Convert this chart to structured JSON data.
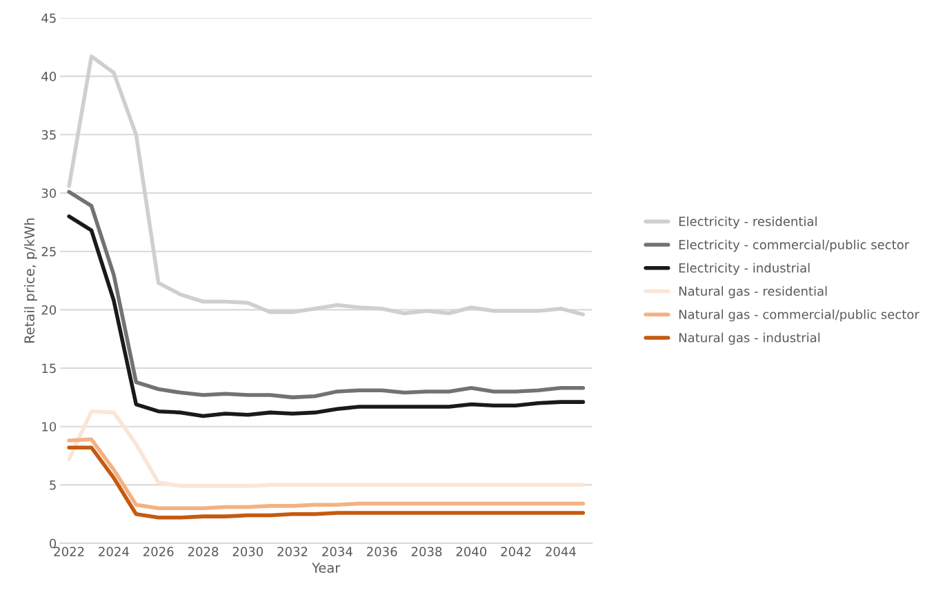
{
  "chart_data": {
    "type": "line",
    "xlabel": "Year",
    "ylabel": "Retail price, p/kWh",
    "x": [
      2022,
      2023,
      2024,
      2025,
      2026,
      2027,
      2028,
      2029,
      2030,
      2031,
      2032,
      2033,
      2034,
      2035,
      2036,
      2037,
      2038,
      2039,
      2040,
      2041,
      2042,
      2043,
      2044,
      2045
    ],
    "xlim": [
      2021.6,
      2045.4
    ],
    "xticks": [
      2022,
      2024,
      2026,
      2028,
      2030,
      2032,
      2034,
      2036,
      2038,
      2040,
      2042,
      2044
    ],
    "ylim": [
      0,
      45
    ],
    "yticks": [
      0,
      5,
      10,
      15,
      20,
      25,
      30,
      35,
      40,
      45
    ],
    "grid": "y",
    "legend": "right",
    "marker": "none",
    "line_style": "solid",
    "series": [
      {
        "name": "Electricity - residential",
        "color": "#d0cece",
        "values": [
          30.6,
          41.7,
          40.3,
          35.0,
          22.3,
          21.3,
          20.7,
          20.7,
          20.6,
          19.8,
          19.8,
          20.1,
          20.4,
          20.2,
          20.1,
          19.7,
          19.9,
          19.7,
          20.2,
          19.9,
          19.9,
          19.9,
          20.1,
          19.6
        ]
      },
      {
        "name": "Electricity - commercial/public sector",
        "color": "#767171",
        "values": [
          30.1,
          28.9,
          23.0,
          13.8,
          13.2,
          12.9,
          12.7,
          12.8,
          12.7,
          12.7,
          12.5,
          12.6,
          13.0,
          13.1,
          13.1,
          12.9,
          13.0,
          13.0,
          13.3,
          13.0,
          13.0,
          13.1,
          13.3,
          13.3
        ]
      },
      {
        "name": "Electricity - industrial",
        "color": "#1a1a1a",
        "values": [
          28.0,
          26.8,
          20.8,
          11.9,
          11.3,
          11.2,
          10.9,
          11.1,
          11.0,
          11.2,
          11.1,
          11.2,
          11.5,
          11.7,
          11.7,
          11.7,
          11.7,
          11.7,
          11.9,
          11.8,
          11.8,
          12.0,
          12.1,
          12.1
        ]
      },
      {
        "name": "Natural gas - residential",
        "color": "#fbe5d6",
        "values": [
          7.2,
          11.3,
          11.2,
          8.5,
          5.2,
          4.9,
          4.9,
          4.9,
          4.9,
          5.0,
          5.0,
          5.0,
          5.0,
          5.0,
          5.0,
          5.0,
          5.0,
          5.0,
          5.0,
          5.0,
          5.0,
          5.0,
          5.0,
          5.0
        ]
      },
      {
        "name": "Natural gas - commercial/public sector",
        "color": "#f4b183",
        "values": [
          8.8,
          8.9,
          6.3,
          3.3,
          3.0,
          3.0,
          3.0,
          3.1,
          3.1,
          3.2,
          3.2,
          3.3,
          3.3,
          3.4,
          3.4,
          3.4,
          3.4,
          3.4,
          3.4,
          3.4,
          3.4,
          3.4,
          3.4,
          3.4
        ]
      },
      {
        "name": "Natural gas - industrial",
        "color": "#c55a11",
        "values": [
          8.2,
          8.2,
          5.6,
          2.5,
          2.2,
          2.2,
          2.3,
          2.3,
          2.4,
          2.4,
          2.5,
          2.5,
          2.6,
          2.6,
          2.6,
          2.6,
          2.6,
          2.6,
          2.6,
          2.6,
          2.6,
          2.6,
          2.6,
          2.6
        ]
      }
    ]
  }
}
